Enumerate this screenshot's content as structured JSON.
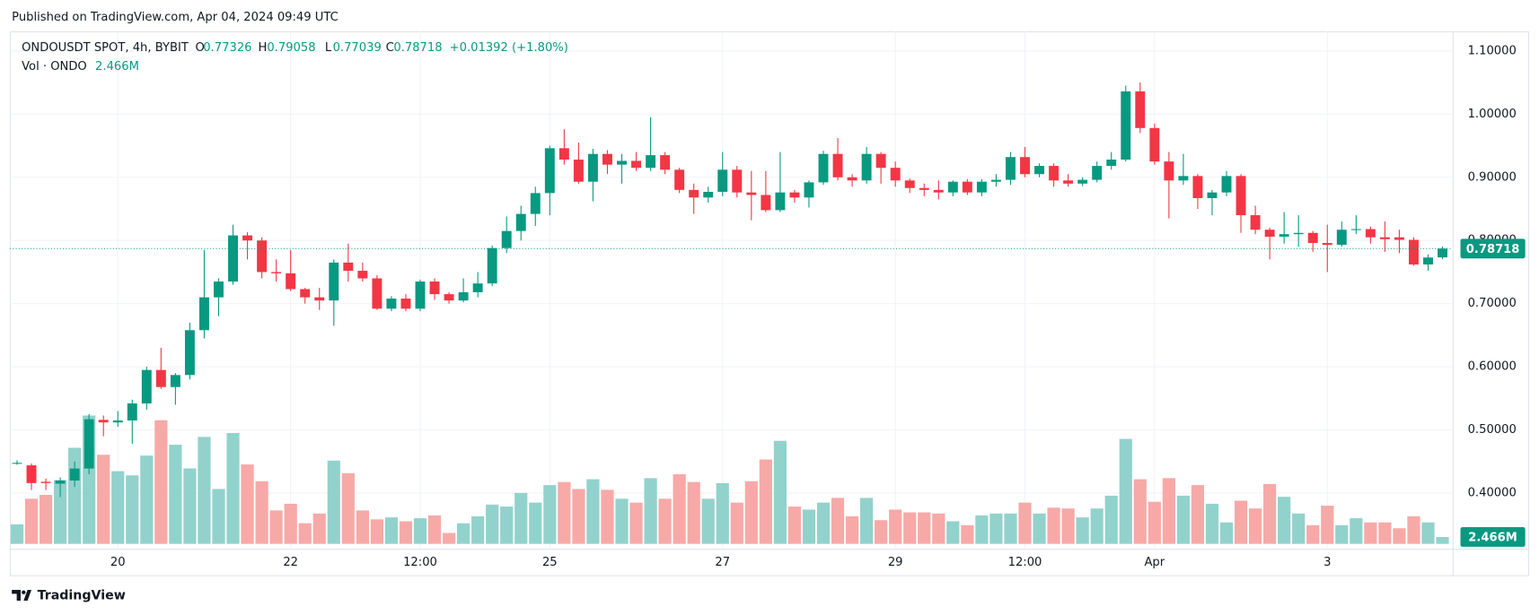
{
  "chart_data": {
    "type": "candlestick",
    "published": "Published on TradingView.com, Apr 04, 2024 09:49 UTC",
    "title": "ONDOUSDT SPOT, 4h, BYBIT",
    "legend_keys": [
      "O",
      "H",
      "L",
      "C"
    ],
    "change_label": "+0.01392 (+1.80%)",
    "volume_name": "Vol · ONDO",
    "volume_label": "2.466M",
    "brand": "TradingView",
    "up_color": "#089981",
    "down_color": "#f23645",
    "up_volume_color": "#92d2cc",
    "down_volume_color": "#f7a9a7",
    "grid": true,
    "open": [
      0.447,
      0.444,
      0.418,
      0.415,
      0.42,
      0.439,
      0.516,
      0.512,
      0.515,
      0.542,
      0.595,
      0.568,
      0.587,
      0.658,
      0.71,
      0.735,
      0.808,
      0.8,
      0.75,
      0.748,
      0.723,
      0.71,
      0.705,
      0.765,
      0.752,
      0.74,
      0.692,
      0.708,
      0.692,
      0.735,
      0.715,
      0.705,
      0.718,
      0.732,
      0.788,
      0.815,
      0.842,
      0.875,
      0.946,
      0.928,
      0.893,
      0.937,
      0.92,
      0.926,
      0.915,
      0.935,
      0.912,
      0.88,
      0.868,
      0.877,
      0.912,
      0.876,
      0.872,
      0.848,
      0.876,
      0.868,
      0.892,
      0.937,
      0.9,
      0.895,
      0.937,
      0.915,
      0.895,
      0.883,
      0.88,
      0.876,
      0.893,
      0.876,
      0.893,
      0.896,
      0.932,
      0.905,
      0.918,
      0.895,
      0.89,
      0.896,
      0.918,
      0.928,
      1.036,
      0.978,
      0.925,
      0.895,
      0.902,
      0.867,
      0.876,
      0.902,
      0.84,
      0.817,
      0.806,
      0.81,
      0.812,
      0.796,
      0.793,
      0.817,
      0.818,
      0.805,
      0.805,
      0.801,
      0.762,
      0.77326
    ],
    "high": [
      0.452,
      0.447,
      0.423,
      0.425,
      0.45,
      0.525,
      0.523,
      0.53,
      0.548,
      0.6,
      0.63,
      0.59,
      0.67,
      0.785,
      0.74,
      0.825,
      0.813,
      0.805,
      0.77,
      0.785,
      0.725,
      0.725,
      0.77,
      0.795,
      0.765,
      0.745,
      0.712,
      0.715,
      0.738,
      0.74,
      0.718,
      0.74,
      0.75,
      0.792,
      0.838,
      0.855,
      0.885,
      0.95,
      0.976,
      0.955,
      0.945,
      0.943,
      0.937,
      0.94,
      0.995,
      0.94,
      0.915,
      0.89,
      0.885,
      0.94,
      0.918,
      0.91,
      0.91,
      0.94,
      0.88,
      0.895,
      0.942,
      0.962,
      0.905,
      0.948,
      0.94,
      0.925,
      0.898,
      0.89,
      0.895,
      0.895,
      0.897,
      0.897,
      0.905,
      0.94,
      0.948,
      0.922,
      0.922,
      0.905,
      0.9,
      0.925,
      0.94,
      1.045,
      1.05,
      0.985,
      0.94,
      0.937,
      0.905,
      0.88,
      0.91,
      0.905,
      0.855,
      0.82,
      0.845,
      0.84,
      0.815,
      0.825,
      0.83,
      0.84,
      0.822,
      0.83,
      0.817,
      0.805,
      0.778,
      0.79058
    ],
    "low": [
      0.445,
      0.405,
      0.405,
      0.394,
      0.41,
      0.43,
      0.49,
      0.505,
      0.478,
      0.532,
      0.565,
      0.54,
      0.58,
      0.645,
      0.68,
      0.73,
      0.77,
      0.74,
      0.735,
      0.72,
      0.7,
      0.69,
      0.665,
      0.735,
      0.735,
      0.69,
      0.688,
      0.688,
      0.688,
      0.706,
      0.7,
      0.702,
      0.71,
      0.728,
      0.78,
      0.8,
      0.823,
      0.84,
      0.92,
      0.89,
      0.862,
      0.905,
      0.89,
      0.91,
      0.91,
      0.905,
      0.875,
      0.842,
      0.86,
      0.87,
      0.868,
      0.832,
      0.845,
      0.845,
      0.86,
      0.852,
      0.888,
      0.895,
      0.885,
      0.89,
      0.89,
      0.885,
      0.875,
      0.87,
      0.865,
      0.87,
      0.872,
      0.87,
      0.885,
      0.888,
      0.9,
      0.9,
      0.885,
      0.885,
      0.886,
      0.892,
      0.912,
      0.925,
      0.97,
      0.92,
      0.835,
      0.888,
      0.85,
      0.84,
      0.87,
      0.812,
      0.81,
      0.77,
      0.795,
      0.79,
      0.782,
      0.75,
      0.79,
      0.81,
      0.795,
      0.782,
      0.78,
      0.76,
      0.752,
      0.77039
    ],
    "close": [
      0.448,
      0.416,
      0.416,
      0.42,
      0.439,
      0.517,
      0.512,
      0.515,
      0.542,
      0.595,
      0.568,
      0.587,
      0.658,
      0.71,
      0.735,
      0.808,
      0.8,
      0.75,
      0.748,
      0.723,
      0.71,
      0.705,
      0.765,
      0.752,
      0.74,
      0.692,
      0.708,
      0.692,
      0.735,
      0.715,
      0.705,
      0.718,
      0.732,
      0.788,
      0.815,
      0.842,
      0.875,
      0.946,
      0.928,
      0.893,
      0.937,
      0.92,
      0.926,
      0.915,
      0.935,
      0.912,
      0.88,
      0.868,
      0.877,
      0.912,
      0.876,
      0.872,
      0.848,
      0.876,
      0.868,
      0.892,
      0.937,
      0.9,
      0.895,
      0.937,
      0.915,
      0.895,
      0.883,
      0.88,
      0.876,
      0.893,
      0.876,
      0.893,
      0.896,
      0.932,
      0.905,
      0.918,
      0.895,
      0.89,
      0.896,
      0.918,
      0.928,
      1.036,
      0.978,
      0.925,
      0.895,
      0.902,
      0.867,
      0.876,
      0.902,
      0.84,
      0.817,
      0.806,
      0.81,
      0.812,
      0.796,
      0.793,
      0.817,
      0.818,
      0.805,
      0.802,
      0.801,
      0.762,
      0.773,
      0.78718
    ],
    "volume": [
      7.0,
      16.2,
      17.6,
      22.9,
      34.5,
      46.1,
      32.0,
      26.1,
      24.6,
      31.7,
      44.4,
      35.6,
      27.1,
      38.4,
      19.7,
      39.8,
      28.5,
      22.5,
      12.0,
      14.4,
      7.4,
      10.9,
      29.9,
      25.4,
      12.0,
      8.8,
      9.5,
      8.1,
      9.2,
      10.2,
      3.9,
      7.4,
      9.9,
      14.1,
      13.4,
      18.3,
      14.8,
      21.1,
      22.2,
      19.7,
      23.2,
      19.4,
      16.2,
      14.8,
      23.6,
      16.2,
      25.0,
      22.2,
      16.2,
      21.8,
      14.8,
      22.5,
      30.3,
      37.0,
      13.4,
      12.3,
      14.8,
      16.5,
      9.9,
      16.5,
      8.5,
      12.3,
      11.3,
      11.3,
      10.9,
      8.1,
      6.7,
      10.2,
      10.9,
      10.9,
      14.8,
      10.9,
      13.0,
      12.7,
      9.5,
      12.7,
      17.3,
      37.7,
      23.2,
      15.1,
      23.6,
      17.3,
      21.1,
      14.4,
      7.7,
      15.5,
      12.7,
      21.5,
      16.9,
      10.9,
      6.7,
      13.7,
      6.7,
      9.2,
      7.7,
      7.7,
      5.6,
      9.9,
      7.7,
      2.466
    ],
    "ylim": [
      0.312,
      1.131
    ],
    "yticks": [
      {
        "value": 0.4,
        "label": "0.40000"
      },
      {
        "value": 0.5,
        "label": "0.50000"
      },
      {
        "value": 0.6,
        "label": "0.60000"
      },
      {
        "value": 0.7,
        "label": "0.70000"
      },
      {
        "value": 0.8,
        "label": "0.80000"
      },
      {
        "value": 0.9,
        "label": "0.90000"
      },
      {
        "value": 1.0,
        "label": "1.00000"
      },
      {
        "value": 1.1,
        "label": "1.10000"
      }
    ],
    "xlim": [
      -0.5,
      99.7
    ],
    "xticks": [
      {
        "value": 7,
        "label": "20"
      },
      {
        "value": 19,
        "label": "22"
      },
      {
        "value": 28,
        "label": "12:00"
      },
      {
        "value": 37,
        "label": "25"
      },
      {
        "value": 49,
        "label": "27"
      },
      {
        "value": 61,
        "label": "29"
      },
      {
        "value": 70,
        "label": "12:00"
      },
      {
        "value": 79,
        "label": "Apr"
      },
      {
        "value": 91,
        "label": "3"
      }
    ]
  }
}
